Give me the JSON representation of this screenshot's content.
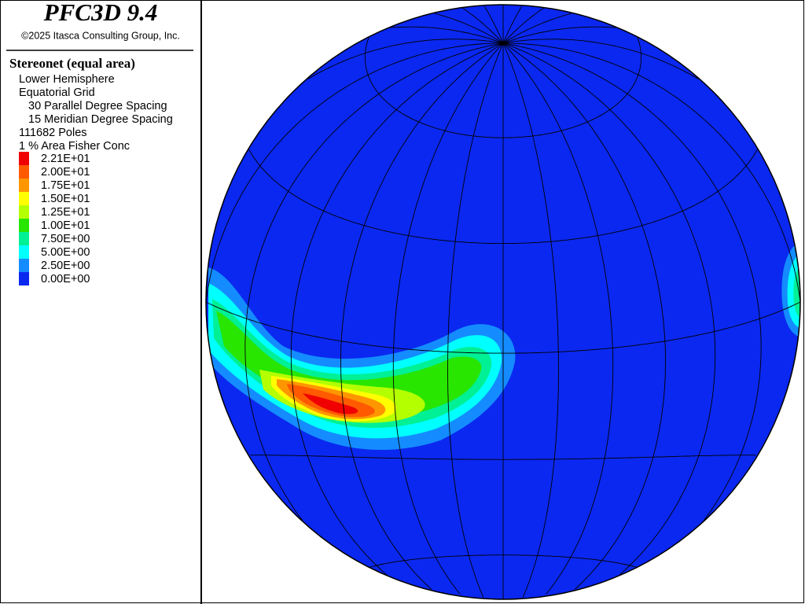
{
  "chart_data": {
    "type": "stereonet",
    "title": "PFC3D 9.4",
    "copyright": "©2025 Itasca Consulting Group, Inc.",
    "plot_title": "Stereonet (equal area)",
    "hemisphere": "Lower Hemisphere",
    "grid_type": "Equatorial Grid",
    "parallel_spacing": 30,
    "parallel_spacing_label": "Parallel Degree Spacing",
    "meridian_spacing": 15,
    "meridian_spacing_label": "Meridian Degree Spacing",
    "poles": "111682 Poles",
    "contour_method": "1 % Area Fisher Conc",
    "levels": [
      {
        "value": 22.1,
        "label": "2.21E+01",
        "color": "#f00000"
      },
      {
        "value": 20.0,
        "label": "2.00E+01",
        "color": "#ff5a00"
      },
      {
        "value": 17.5,
        "label": "1.75E+01",
        "color": "#ff9600"
      },
      {
        "value": 15.0,
        "label": "1.50E+01",
        "color": "#ffff00"
      },
      {
        "value": 12.5,
        "label": "1.25E+01",
        "color": "#b4ff00"
      },
      {
        "value": 10.0,
        "label": "1.00E+01",
        "color": "#28e600"
      },
      {
        "value": 7.5,
        "label": "7.50E+00",
        "color": "#00f096"
      },
      {
        "value": 5.0,
        "label": "5.00E+00",
        "color": "#00ffff"
      },
      {
        "value": 2.5,
        "label": "2.50E+00",
        "color": "#148cff"
      },
      {
        "value": 0.0,
        "label": "0.00E+00",
        "color": "#0a28f0"
      }
    ]
  }
}
